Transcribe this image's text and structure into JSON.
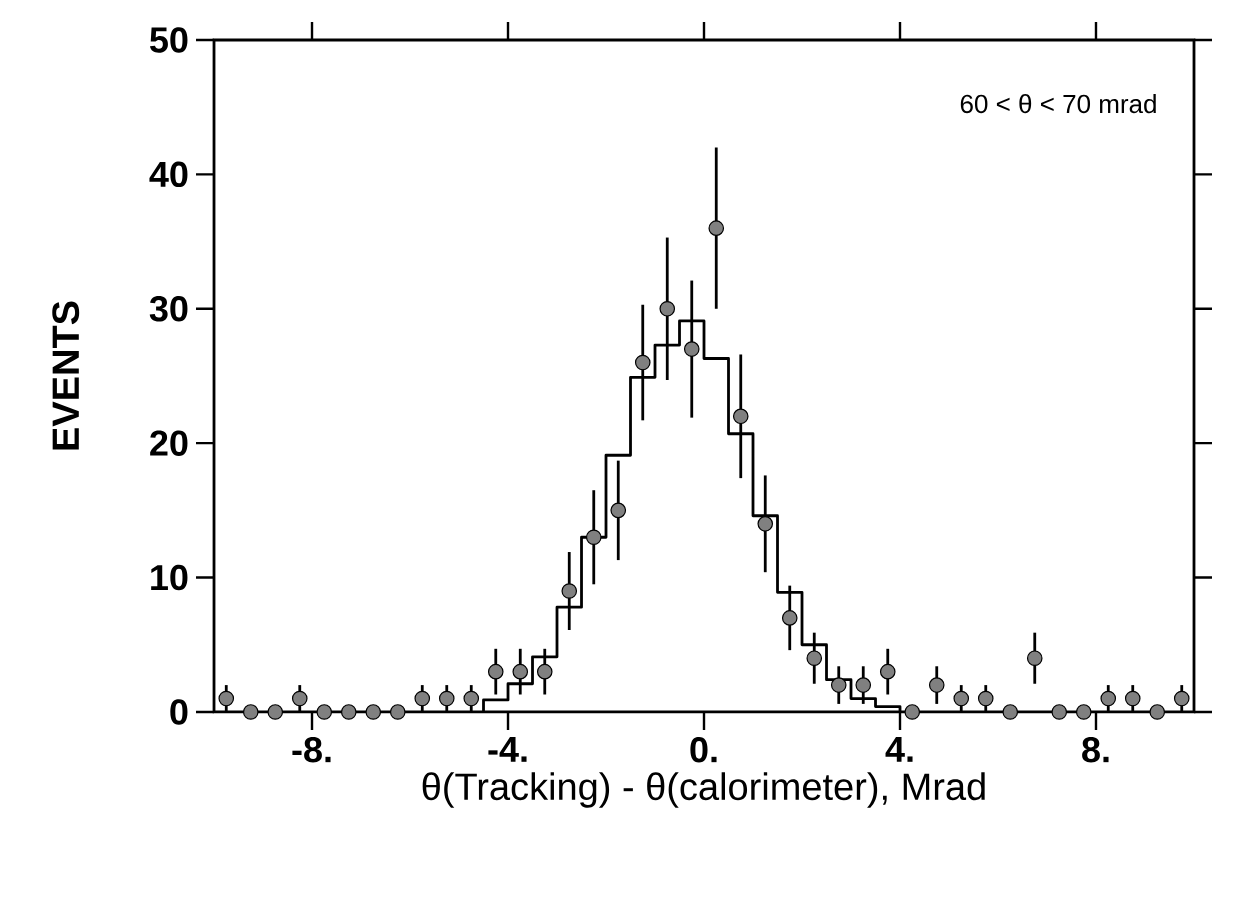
{
  "chart_data": {
    "type": "scatter",
    "xlabel": "θ(Tracking) - θ(calorimeter), Mrad",
    "ylabel": "EVENTS",
    "annotations": [
      "60 < θ < 70 mrad"
    ],
    "xlim": [
      -10,
      10
    ],
    "ylim": [
      0,
      50
    ],
    "xticks": [
      {
        "value": -8,
        "label": "-8."
      },
      {
        "value": -4,
        "label": "-4."
      },
      {
        "value": 0,
        "label": "0."
      },
      {
        "value": 4,
        "label": "4."
      },
      {
        "value": 8,
        "label": "8."
      }
    ],
    "yticks": [
      0,
      10,
      20,
      30,
      40,
      50
    ],
    "grid": false,
    "series": [
      {
        "color": "#808080",
        "marker": "circle",
        "x": [
          -9.75,
          -9.25,
          -8.75,
          -8.25,
          -7.75,
          -7.25,
          -6.75,
          -6.25,
          -5.75,
          -5.25,
          -4.75,
          -4.25,
          -3.75,
          -3.25,
          -2.75,
          -2.25,
          -1.75,
          -1.25,
          -0.75,
          -0.25,
          0.25,
          0.75,
          1.25,
          1.75,
          2.25,
          2.75,
          3.25,
          3.75,
          4.25,
          4.75,
          5.25,
          5.75,
          6.25,
          6.75,
          7.25,
          7.75,
          8.25,
          8.75,
          9.25,
          9.75
        ],
        "values": [
          1,
          0,
          0,
          1,
          0,
          0,
          0,
          0,
          1,
          1,
          1,
          3,
          3,
          3,
          9,
          13,
          15,
          26,
          30,
          27,
          36,
          22,
          14,
          7,
          4,
          2,
          2,
          3,
          0,
          2,
          1,
          1,
          0,
          4,
          0,
          0,
          1,
          1,
          0,
          1
        ],
        "errors": [
          1,
          null,
          null,
          1,
          null,
          null,
          null,
          null,
          1,
          1,
          1,
          1.7,
          1.7,
          1.7,
          2.9,
          3.5,
          3.7,
          4.3,
          5.3,
          5.1,
          6,
          4.6,
          3.6,
          2.4,
          1.9,
          1.4,
          1.4,
          1.7,
          null,
          1.4,
          1,
          1,
          null,
          1.9,
          null,
          null,
          1,
          1,
          null,
          1
        ]
      },
      {
        "type": "histogram",
        "color": "#000000",
        "bins": [
          -4.5,
          -4.0,
          -3.5,
          -3.0,
          -2.5,
          -2.0,
          -1.5,
          -1.0,
          -0.5,
          0.0,
          0.5,
          1.0,
          1.5,
          2.0,
          2.5,
          3.0,
          3.5,
          4.0
        ],
        "values": [
          0.9,
          2.1,
          4.1,
          7.8,
          13,
          19.1,
          24.9,
          27.3,
          29.1,
          26.3,
          20.7,
          14.6,
          8.9,
          5.0,
          2.4,
          1.0,
          0.4
        ]
      }
    ]
  }
}
